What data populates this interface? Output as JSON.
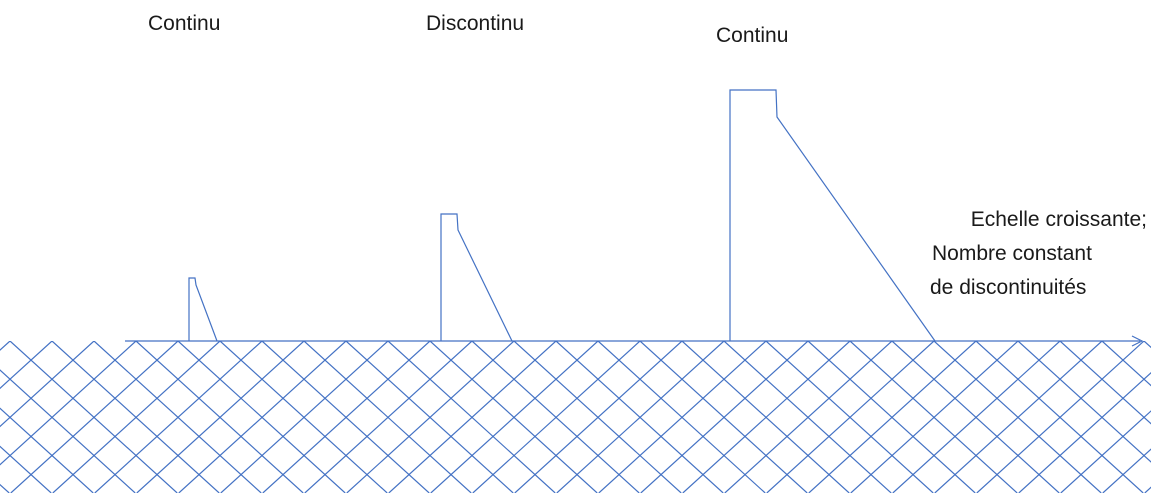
{
  "labels": {
    "left": "Continu",
    "middle": "Discontinu",
    "right": "Continu",
    "annotation_line1": "Echelle croissante;",
    "annotation_line2": "Nombre constant",
    "annotation_line3": "de discontinuités"
  },
  "colors": {
    "line": "#4472c4",
    "text": "#1a1a1a"
  }
}
